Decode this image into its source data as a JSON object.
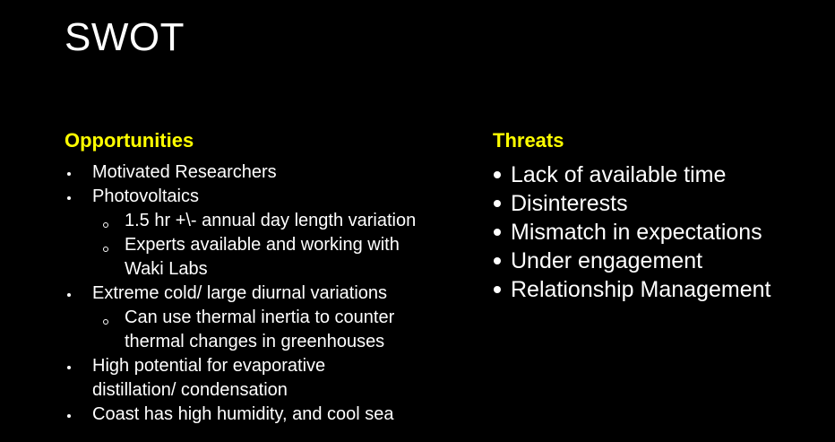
{
  "slide": {
    "title": "SWOT"
  },
  "colors": {
    "background": "#000000",
    "text": "#ffffff",
    "heading": "#ffff00"
  },
  "opportunities": {
    "heading": "Opportunities",
    "items": [
      {
        "level": 1,
        "lines": [
          "Motivated Researchers"
        ]
      },
      {
        "level": 1,
        "lines": [
          "Photovoltaics"
        ]
      },
      {
        "level": 2,
        "lines": [
          "1.5 hr +\\- annual day length variation"
        ]
      },
      {
        "level": 2,
        "lines": [
          "Experts available and working with",
          "Waki Labs"
        ]
      },
      {
        "level": 1,
        "lines": [
          "Extreme cold/ large diurnal variations"
        ]
      },
      {
        "level": 2,
        "lines": [
          "Can use thermal inertia to counter",
          "thermal changes in greenhouses"
        ]
      },
      {
        "level": 1,
        "lines": [
          "High potential for evaporative",
          "distillation/ condensation"
        ]
      },
      {
        "level": 1,
        "lines": [
          "Coast has high humidity, and cool sea"
        ]
      }
    ]
  },
  "threats": {
    "heading": "Threats",
    "items": [
      "Lack of available time",
      "Disinterests",
      "Mismatch in expectations",
      "Under engagement",
      "Relationship Management"
    ]
  }
}
